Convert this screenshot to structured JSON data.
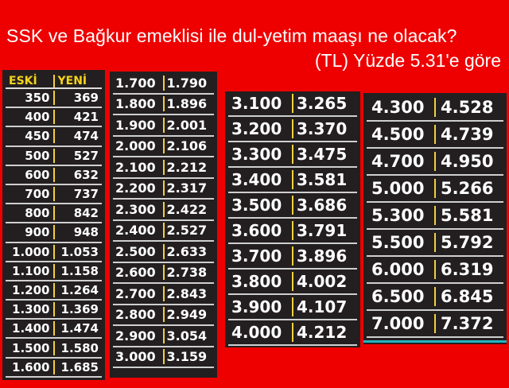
{
  "title": {
    "line1": "SSK ve Bağkur emeklisi ile dul-yetim maaşı ne olacak?",
    "line2": "(TL) Yüzde 5.31'e göre"
  },
  "headers": {
    "old": "ESKİ",
    "new": "YENİ"
  },
  "colors": {
    "background": "#ee0000",
    "table": "#231f20",
    "header_text": "#f5d31c",
    "divider": "#f0d040",
    "accent_line": "#26b3c2"
  },
  "tables": [
    {
      "rows": [
        [
          "350",
          "369"
        ],
        [
          "400",
          "421"
        ],
        [
          "450",
          "474"
        ],
        [
          "500",
          "527"
        ],
        [
          "600",
          "632"
        ],
        [
          "700",
          "737"
        ],
        [
          "800",
          "842"
        ],
        [
          "900",
          "948"
        ],
        [
          "1.000",
          "1.053"
        ],
        [
          "1.100",
          "1.158"
        ],
        [
          "1.200",
          "1.264"
        ],
        [
          "1.300",
          "1.369"
        ],
        [
          "1.400",
          "1.474"
        ],
        [
          "1.500",
          "1.580"
        ],
        [
          "1.600",
          "1.685"
        ]
      ]
    },
    {
      "rows": [
        [
          "1.700",
          "1.790"
        ],
        [
          "1.800",
          "1.896"
        ],
        [
          "1.900",
          "2.001"
        ],
        [
          "2.000",
          "2.106"
        ],
        [
          "2.100",
          "2.212"
        ],
        [
          "2.200",
          "2.317"
        ],
        [
          "2.300",
          "2.422"
        ],
        [
          "2.400",
          "2.527"
        ],
        [
          "2.500",
          "2.633"
        ],
        [
          "2.600",
          "2.738"
        ],
        [
          "2.700",
          "2.843"
        ],
        [
          "2.800",
          "2.949"
        ],
        [
          "2.900",
          "3.054"
        ],
        [
          "3.000",
          "3.159"
        ]
      ]
    },
    {
      "rows": [
        [
          "3.100",
          "3.265"
        ],
        [
          "3.200",
          "3.370"
        ],
        [
          "3.300",
          "3.475"
        ],
        [
          "3.400",
          "3.581"
        ],
        [
          "3.500",
          "3.686"
        ],
        [
          "3.600",
          "3.791"
        ],
        [
          "3.700",
          "3.896"
        ],
        [
          "3.800",
          "4.002"
        ],
        [
          "3.900",
          "4.107"
        ],
        [
          "4.000",
          "4.212"
        ]
      ]
    },
    {
      "rows": [
        [
          "4.300",
          "4.528"
        ],
        [
          "4.500",
          "4.739"
        ],
        [
          "4.700",
          "4.950"
        ],
        [
          "5.000",
          "5.266"
        ],
        [
          "5.300",
          "5.581"
        ],
        [
          "5.500",
          "5.792"
        ],
        [
          "6.000",
          "6.319"
        ],
        [
          "6.500",
          "6.845"
        ],
        [
          "7.000",
          "7.372"
        ]
      ]
    }
  ]
}
